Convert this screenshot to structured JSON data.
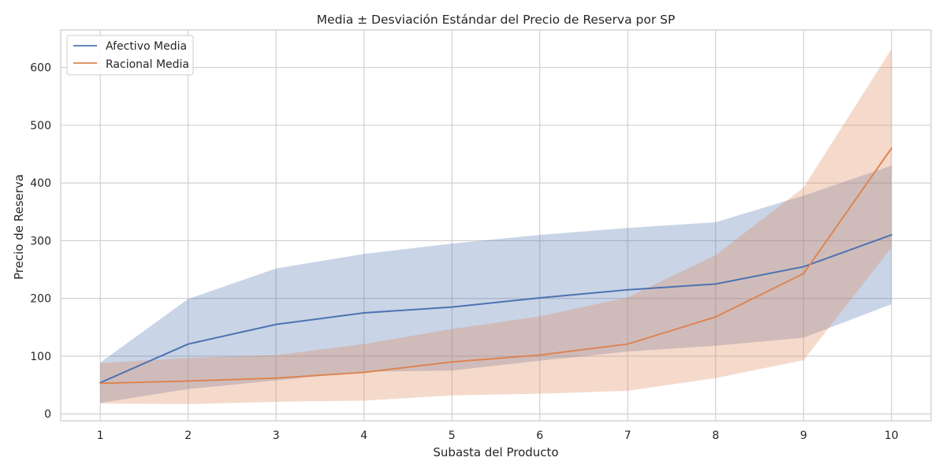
{
  "chart_data": {
    "type": "line",
    "title": "Media ± Desviación Estándar del Precio de Reserva por SP",
    "xlabel": "Subasta del Producto",
    "ylabel": "Precio de Reserva",
    "x": [
      1,
      2,
      3,
      4,
      5,
      6,
      7,
      8,
      9,
      10
    ],
    "xlim": [
      0.55,
      10.45
    ],
    "ylim": [
      -12,
      665
    ],
    "xticks": [
      "1",
      "2",
      "3",
      "4",
      "5",
      "6",
      "7",
      "8",
      "9",
      "10"
    ],
    "yticks": [
      0,
      100,
      200,
      300,
      400,
      500,
      600
    ],
    "grid": true,
    "legend_position": "top-left",
    "series": [
      {
        "name": "Afectivo Media",
        "color": "#4c72b0",
        "mean": [
          54,
          121,
          155,
          175,
          185,
          201,
          215,
          225,
          255,
          310
        ],
        "upper": [
          89,
          199,
          252,
          277,
          295,
          310,
          322,
          332,
          378,
          430
        ],
        "lower": [
          19,
          43,
          58,
          73,
          75,
          92,
          108,
          118,
          132,
          190
        ]
      },
      {
        "name": "Racional Media",
        "color": "#dd8452",
        "mean": [
          53,
          57,
          62,
          72,
          90,
          102,
          121,
          168,
          243,
          460
        ],
        "upper": [
          88,
          97,
          102,
          121,
          147,
          169,
          202,
          275,
          392,
          632
        ],
        "lower": [
          18,
          17,
          21,
          23,
          32,
          35,
          40,
          62,
          93,
          288
        ]
      }
    ]
  }
}
